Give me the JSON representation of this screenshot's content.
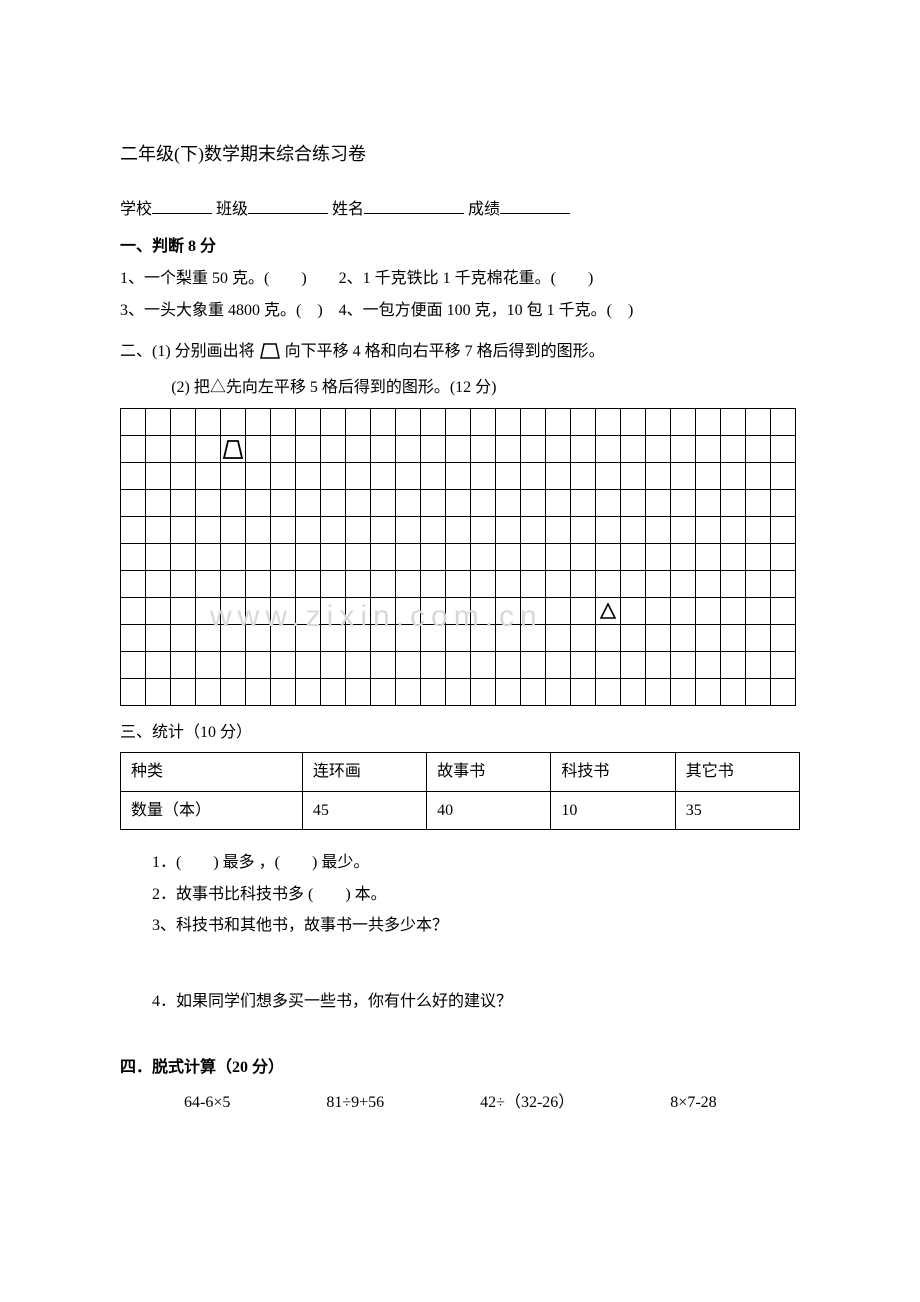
{
  "title": "二年级(下)数学期末综合练习卷",
  "info": {
    "school_label": "学校",
    "class_label": "班级",
    "name_label": "姓名",
    "score_label": "成绩"
  },
  "section1": {
    "heading": "一、判断 8 分",
    "line1": "1、一个梨重 50 克。(　　)　　2、1 千克铁比 1 千克棉花重。(　　)",
    "line2": "3、一头大象重 4800 克。(　)　4、一包方便面 100 克，10 包 1 千克。(　)"
  },
  "section2": {
    "line1_a": "二、(1) 分别画出将",
    "line1_b": "向下平移 4 格和向右平移 7 格后得到的图形。",
    "line2": "(2) 把△先向左平移 5 格后得到的图形。(12 分)"
  },
  "grid": {
    "rows": 11,
    "cols": 27,
    "trapezoid_cell": {
      "row": 1,
      "col": 4
    },
    "triangle_cell": {
      "row": 7,
      "col": 19
    },
    "watermark_text": "www.zixin.com.cn"
  },
  "section3": {
    "heading": "三、统计（10 分）",
    "table": {
      "headers": [
        "种类",
        "连环画",
        "故事书",
        "科技书",
        "其它书"
      ],
      "row_label": "数量（本）",
      "values": [
        "45",
        "40",
        "10",
        "35"
      ]
    },
    "q1": "1．(　　) 最多 ，(　　) 最少。",
    "q2": "2．故事书比科技书多 (　　) 本。",
    "q3": "3、科技书和其他书，故事书一共多少本？",
    "q4": "4．如果同学们想多买一些书，你有什么好的建议？"
  },
  "section4": {
    "heading": "四．脱式计算（20 分）",
    "items": [
      "64-6×5",
      "81÷9+56",
      "42÷（32-26）",
      "8×7-28"
    ]
  }
}
